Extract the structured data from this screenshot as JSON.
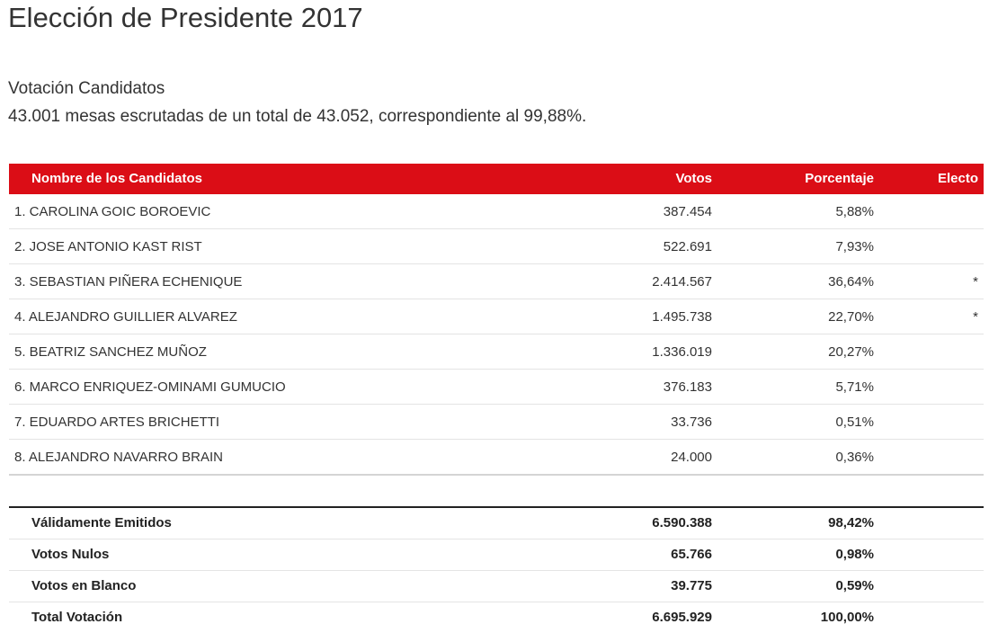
{
  "title": "Elección de Presidente 2017",
  "subtitle": "Votación Candidatos",
  "summary": "43.001 mesas escrutadas de un total de 43.052, correspondiente al 99,88%.",
  "colors": {
    "header_bg": "#db0d16",
    "header_text": "#ffffff",
    "row_divider": "#e4e4e4",
    "totals_top_border": "#222222"
  },
  "table": {
    "headers": {
      "name": "Nombre de los Candidatos",
      "votes": "Votos",
      "percent": "Porcentaje",
      "elected": "Electo"
    },
    "rows": [
      {
        "name": "1. CAROLINA GOIC BOROEVIC",
        "votes": "387.454",
        "percent": "5,88%",
        "elected": ""
      },
      {
        "name": "2. JOSE ANTONIO KAST RIST",
        "votes": "522.691",
        "percent": "7,93%",
        "elected": ""
      },
      {
        "name": "3. SEBASTIAN PIÑERA ECHENIQUE",
        "votes": "2.414.567",
        "percent": "36,64%",
        "elected": "*"
      },
      {
        "name": "4. ALEJANDRO GUILLIER ALVAREZ",
        "votes": "1.495.738",
        "percent": "22,70%",
        "elected": "*"
      },
      {
        "name": "5. BEATRIZ SANCHEZ MUÑOZ",
        "votes": "1.336.019",
        "percent": "20,27%",
        "elected": ""
      },
      {
        "name": "6. MARCO ENRIQUEZ-OMINAMI GUMUCIO",
        "votes": "376.183",
        "percent": "5,71%",
        "elected": ""
      },
      {
        "name": "7. EDUARDO ARTES BRICHETTI",
        "votes": "33.736",
        "percent": "0,51%",
        "elected": ""
      },
      {
        "name": "8. ALEJANDRO NAVARRO BRAIN",
        "votes": "24.000",
        "percent": "0,36%",
        "elected": ""
      }
    ]
  },
  "totals": [
    {
      "label": "Válidamente Emitidos",
      "votes": "6.590.388",
      "percent": "98,42%"
    },
    {
      "label": "Votos Nulos",
      "votes": "65.766",
      "percent": "0,98%"
    },
    {
      "label": "Votos en Blanco",
      "votes": "39.775",
      "percent": "0,59%"
    },
    {
      "label": "Total Votación",
      "votes": "6.695.929",
      "percent": "100,00%"
    }
  ]
}
